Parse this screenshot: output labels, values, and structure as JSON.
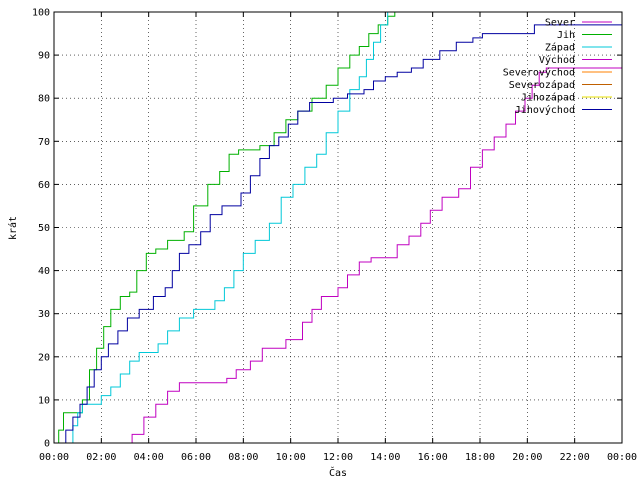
{
  "chart_data": {
    "type": "line",
    "xlabel": "Čas",
    "ylabel": "krát",
    "xlim": [
      0,
      24
    ],
    "ylim": [
      0,
      100
    ],
    "x_ticks": [
      "00:00",
      "02:00",
      "04:00",
      "06:00",
      "08:00",
      "10:00",
      "12:00",
      "14:00",
      "16:00",
      "18:00",
      "20:00",
      "22:00",
      "00:00"
    ],
    "y_ticks": [
      0,
      10,
      20,
      30,
      40,
      50,
      60,
      70,
      80,
      90,
      100
    ],
    "grid": true,
    "legend_position": "top-right",
    "series": [
      {
        "name": "Sever",
        "color": "#c000c0",
        "points": []
      },
      {
        "name": "Jih",
        "color": "#00b000",
        "points": [
          [
            0.1,
            0
          ],
          [
            0.2,
            3
          ],
          [
            0.4,
            7
          ],
          [
            0.8,
            7
          ],
          [
            1.2,
            10
          ],
          [
            1.5,
            17
          ],
          [
            1.8,
            22
          ],
          [
            2.1,
            27
          ],
          [
            2.4,
            31
          ],
          [
            2.8,
            34
          ],
          [
            3.2,
            35
          ],
          [
            3.5,
            40
          ],
          [
            3.9,
            44
          ],
          [
            4.3,
            45
          ],
          [
            4.8,
            47
          ],
          [
            5.5,
            49
          ],
          [
            5.9,
            55
          ],
          [
            6.5,
            60
          ],
          [
            7.0,
            63
          ],
          [
            7.4,
            67
          ],
          [
            7.8,
            68
          ],
          [
            8.7,
            69
          ],
          [
            9.3,
            72
          ],
          [
            9.8,
            75
          ],
          [
            10.3,
            77
          ],
          [
            10.9,
            80
          ],
          [
            11.5,
            83
          ],
          [
            12.0,
            87
          ],
          [
            12.5,
            90
          ],
          [
            12.9,
            92
          ],
          [
            13.3,
            95
          ],
          [
            13.7,
            97
          ],
          [
            14.1,
            99
          ],
          [
            14.4,
            100
          ],
          [
            14.8,
            100
          ]
        ]
      },
      {
        "name": "Západ",
        "color": "#00c8d8",
        "points": [
          [
            0.6,
            0
          ],
          [
            0.8,
            4
          ],
          [
            1.0,
            7
          ],
          [
            1.2,
            9
          ],
          [
            2.0,
            11
          ],
          [
            2.4,
            13
          ],
          [
            2.8,
            16
          ],
          [
            3.2,
            19
          ],
          [
            3.6,
            21
          ],
          [
            4.4,
            23
          ],
          [
            4.8,
            26
          ],
          [
            5.3,
            29
          ],
          [
            5.9,
            31
          ],
          [
            6.8,
            33
          ],
          [
            7.2,
            36
          ],
          [
            7.6,
            40
          ],
          [
            8.0,
            44
          ],
          [
            8.5,
            47
          ],
          [
            9.1,
            51
          ],
          [
            9.6,
            57
          ],
          [
            10.1,
            60
          ],
          [
            10.6,
            64
          ],
          [
            11.1,
            67
          ],
          [
            11.5,
            72
          ],
          [
            12.0,
            77
          ],
          [
            12.5,
            82
          ],
          [
            12.9,
            85
          ],
          [
            13.2,
            89
          ],
          [
            13.5,
            93
          ],
          [
            13.8,
            97
          ],
          [
            14.1,
            100
          ]
        ]
      },
      {
        "name": "Východ",
        "color": "#c000c0",
        "points": [
          [
            2.9,
            0
          ],
          [
            3.3,
            2
          ],
          [
            3.8,
            6
          ],
          [
            4.3,
            9
          ],
          [
            4.8,
            12
          ],
          [
            5.3,
            14
          ],
          [
            7.3,
            15
          ],
          [
            7.7,
            17
          ],
          [
            8.3,
            19
          ],
          [
            8.8,
            22
          ],
          [
            9.8,
            24
          ],
          [
            10.5,
            28
          ],
          [
            10.9,
            31
          ],
          [
            11.3,
            34
          ],
          [
            12.0,
            36
          ],
          [
            12.4,
            39
          ],
          [
            12.9,
            42
          ],
          [
            13.4,
            43
          ],
          [
            14.5,
            46
          ],
          [
            15.0,
            48
          ],
          [
            15.5,
            51
          ],
          [
            15.9,
            54
          ],
          [
            16.4,
            57
          ],
          [
            17.1,
            59
          ],
          [
            17.6,
            64
          ],
          [
            18.1,
            68
          ],
          [
            18.6,
            71
          ],
          [
            19.1,
            74
          ],
          [
            19.5,
            77
          ],
          [
            19.9,
            80
          ],
          [
            20.2,
            83
          ],
          [
            20.5,
            86
          ],
          [
            20.8,
            87
          ],
          [
            24,
            87
          ]
        ]
      },
      {
        "name": "Severovýchod",
        "color": "#ff8000",
        "points": []
      },
      {
        "name": "Severozápad",
        "color": "#c06000",
        "points": []
      },
      {
        "name": "Jihozápad",
        "color": "#e8e000",
        "points": []
      },
      {
        "name": "Jihovýchod",
        "color": "#0000a0",
        "points": [
          [
            0.3,
            0
          ],
          [
            0.5,
            3
          ],
          [
            0.8,
            6
          ],
          [
            1.1,
            9
          ],
          [
            1.4,
            13
          ],
          [
            1.7,
            17
          ],
          [
            2.0,
            20
          ],
          [
            2.3,
            23
          ],
          [
            2.7,
            26
          ],
          [
            3.1,
            29
          ],
          [
            3.6,
            31
          ],
          [
            4.2,
            34
          ],
          [
            4.7,
            36
          ],
          [
            5.0,
            40
          ],
          [
            5.3,
            44
          ],
          [
            5.7,
            46
          ],
          [
            6.2,
            49
          ],
          [
            6.6,
            53
          ],
          [
            7.1,
            55
          ],
          [
            7.9,
            58
          ],
          [
            8.3,
            62
          ],
          [
            8.7,
            66
          ],
          [
            9.1,
            69
          ],
          [
            9.5,
            71
          ],
          [
            9.9,
            74
          ],
          [
            10.3,
            77
          ],
          [
            10.8,
            79
          ],
          [
            11.8,
            80
          ],
          [
            12.4,
            81
          ],
          [
            13.1,
            82
          ],
          [
            13.5,
            84
          ],
          [
            14.0,
            85
          ],
          [
            14.5,
            86
          ],
          [
            15.1,
            87
          ],
          [
            15.6,
            89
          ],
          [
            16.3,
            91
          ],
          [
            17.0,
            93
          ],
          [
            17.7,
            94
          ],
          [
            18.1,
            95
          ],
          [
            20.3,
            97
          ],
          [
            24,
            97
          ]
        ]
      }
    ]
  }
}
